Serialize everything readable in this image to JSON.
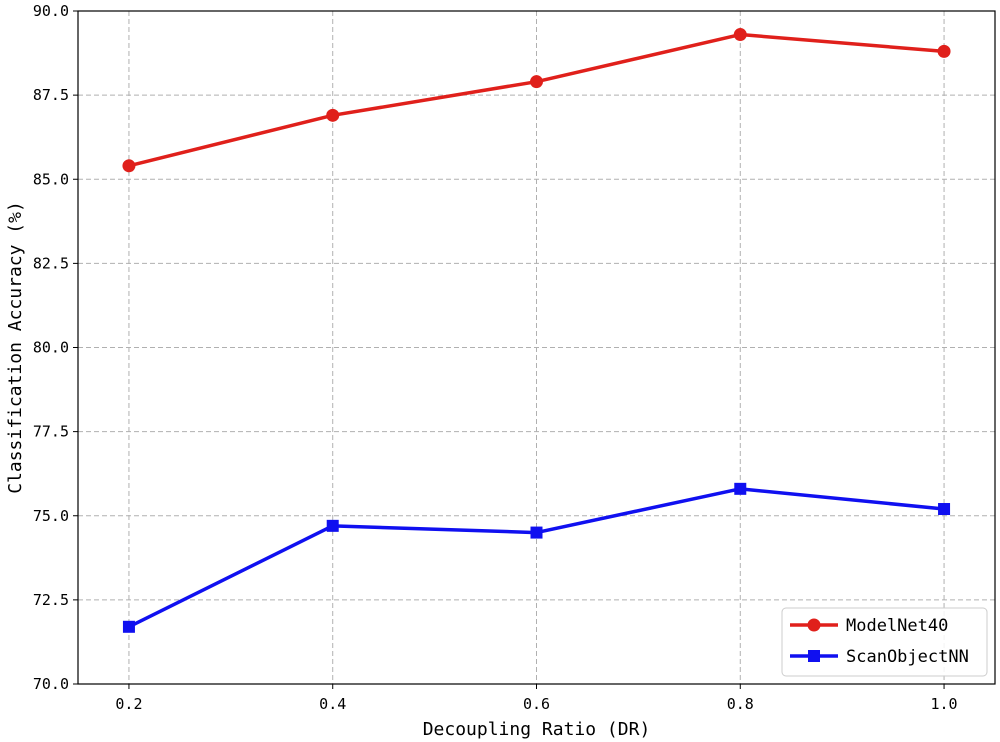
{
  "chart_data": {
    "type": "line",
    "title": "",
    "xlabel": "Decoupling Ratio (DR)",
    "ylabel": "Classification Accuracy (%)",
    "x": [
      0.2,
      0.4,
      0.6,
      0.8,
      1.0
    ],
    "x_tick_labels": [
      "0.2",
      "0.4",
      "0.6",
      "0.8",
      "1.0"
    ],
    "y_ticks": [
      70.0,
      72.5,
      75.0,
      77.5,
      80.0,
      82.5,
      85.0,
      87.5,
      90.0
    ],
    "y_tick_labels": [
      "70.0",
      "72.5",
      "75.0",
      "77.5",
      "80.0",
      "82.5",
      "85.0",
      "87.5",
      "90.0"
    ],
    "xlim": [
      0.15,
      1.05
    ],
    "ylim": [
      70.0,
      90.0
    ],
    "grid": true,
    "legend_position": "lower-right",
    "series": [
      {
        "name": "ModelNet40",
        "color": "#e0201b",
        "marker": "circle",
        "values": [
          85.4,
          86.9,
          87.9,
          89.3,
          88.8
        ]
      },
      {
        "name": "ScanObjectNN",
        "color": "#1010f0",
        "marker": "square",
        "values": [
          71.7,
          74.7,
          74.5,
          75.8,
          75.2
        ]
      }
    ]
  }
}
